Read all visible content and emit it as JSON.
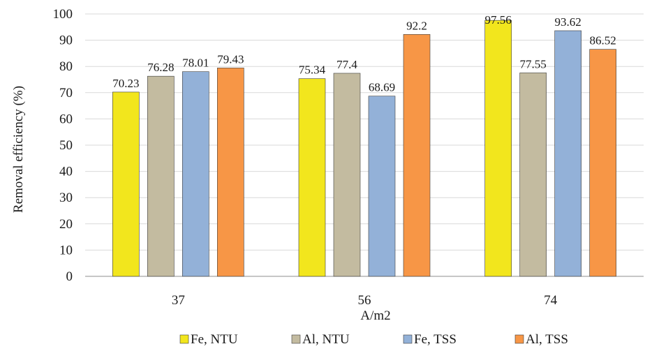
{
  "chart_data": {
    "type": "bar",
    "categories": [
      "37",
      "56",
      "74"
    ],
    "series": [
      {
        "name": "Fe, NTU",
        "values": [
          70.23,
          75.34,
          97.56
        ],
        "color": "#f2e61d"
      },
      {
        "name": "Al, NTU",
        "values": [
          76.28,
          77.4,
          77.55
        ],
        "color": "#c3bba0"
      },
      {
        "name": "Fe, TSS",
        "values": [
          78.01,
          68.69,
          93.62
        ],
        "color": "#93b1d8"
      },
      {
        "name": "Al, TSS",
        "values": [
          79.43,
          92.2,
          86.52
        ],
        "color": "#f79646"
      }
    ],
    "data_labels": [
      [
        "70.23",
        "75.34",
        "97.56"
      ],
      [
        "76.28",
        "77.4",
        "77.55"
      ],
      [
        "78.01",
        "68.69",
        "93.62"
      ],
      [
        "79.43",
        "92.2",
        "86.52"
      ]
    ],
    "xlabel": "A/m2",
    "ylabel": "Removal efficiency (%)",
    "ylim": [
      0,
      100
    ],
    "yticks": [
      0,
      10,
      20,
      30,
      40,
      50,
      60,
      70,
      80,
      90,
      100
    ],
    "grid": true,
    "legend": "bottom"
  }
}
